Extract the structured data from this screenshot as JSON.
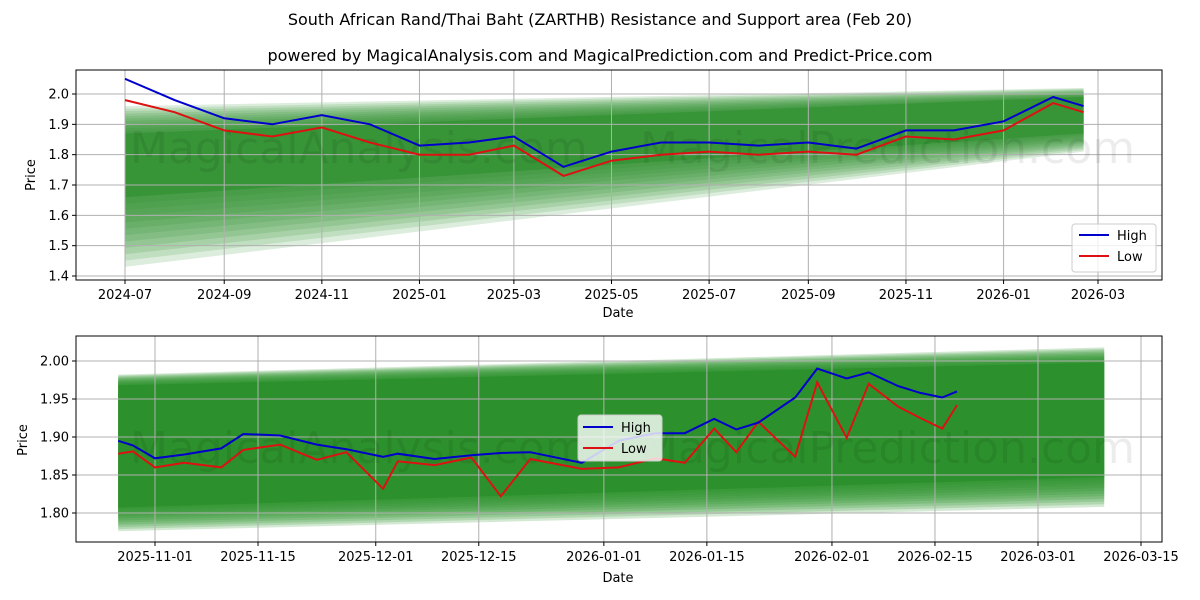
{
  "title": "South African Rand/Thai Baht (ZARTHB) Resistance and Support area (Feb 20)",
  "subtitle": "powered by MagicalAnalysis.com and MagicalPrediction.com and Predict-Price.com",
  "watermark": {
    "left": "MagicalAnalysis.com",
    "right": "MagicalPrediction.com"
  },
  "colors": {
    "high": "#0000cc",
    "low": "#dd1111",
    "band": "#2a8f2a",
    "grid": "#b0b0b0"
  },
  "legend": {
    "high": "High",
    "low": "Low"
  },
  "chart_data": [
    {
      "type": "line",
      "title": "South African Rand/Thai Baht (ZARTHB) Resistance and Support area (Feb 20)",
      "xlabel": "Date",
      "ylabel": "Price",
      "ylim": [
        1.39,
        2.08
      ],
      "yticks": [
        "1.4",
        "1.5",
        "1.6",
        "1.7",
        "1.8",
        "1.9",
        "2.0"
      ],
      "xticks": [
        "2024-07",
        "2024-09",
        "2024-11",
        "2025-01",
        "2025-03",
        "2025-05",
        "2025-07",
        "2025-09",
        "2025-11",
        "2026-01",
        "2026-03"
      ],
      "grid": true,
      "legend_position": "lower right",
      "x": [
        "2024-07",
        "2024-08",
        "2024-09",
        "2024-10",
        "2024-11",
        "2024-12",
        "2025-01",
        "2025-02",
        "2025-03",
        "2025-04",
        "2025-05",
        "2025-06",
        "2025-07",
        "2025-08",
        "2025-09",
        "2025-10",
        "2025-11",
        "2025-12",
        "2026-01",
        "2026-02",
        "2026-02-20"
      ],
      "series": [
        {
          "name": "High",
          "values": [
            2.05,
            1.98,
            1.92,
            1.9,
            1.93,
            1.9,
            1.83,
            1.84,
            1.86,
            1.76,
            1.81,
            1.84,
            1.84,
            1.83,
            1.84,
            1.82,
            1.88,
            1.88,
            1.91,
            1.99,
            1.96
          ]
        },
        {
          "name": "Low",
          "values": [
            1.98,
            1.94,
            1.88,
            1.86,
            1.89,
            1.84,
            1.8,
            1.8,
            1.83,
            1.73,
            1.78,
            1.8,
            1.81,
            1.8,
            1.81,
            1.8,
            1.86,
            1.85,
            1.88,
            1.97,
            1.94
          ]
        }
      ],
      "support_resistance_band": {
        "start": "2024-07",
        "end": "2026-02-20",
        "outer_upper": [
          1.96,
          2.02
        ],
        "core_upper": [
          1.87,
          1.99
        ],
        "core_lower": [
          1.66,
          1.87
        ],
        "outer_lower": [
          1.43,
          1.81
        ]
      }
    },
    {
      "type": "line",
      "xlabel": "Date",
      "ylabel": "Price",
      "ylim": [
        1.763,
        2.033
      ],
      "yticks": [
        "1.80",
        "1.85",
        "1.90",
        "1.95",
        "2.00"
      ],
      "xticks": [
        "2025-11-01",
        "2025-11-15",
        "2025-12-01",
        "2025-12-15",
        "2026-01-01",
        "2026-01-15",
        "2026-02-01",
        "2026-02-15",
        "2026-03-01",
        "2026-03-15"
      ],
      "grid": true,
      "legend_position": "center",
      "x": [
        "2025-10-27",
        "2025-10-29",
        "2025-11-01",
        "2025-11-05",
        "2025-11-10",
        "2025-11-13",
        "2025-11-18",
        "2025-11-23",
        "2025-11-27",
        "2025-12-02",
        "2025-12-04",
        "2025-12-09",
        "2025-12-14",
        "2025-12-18",
        "2025-12-22",
        "2025-12-29",
        "2026-01-03",
        "2026-01-08",
        "2026-01-12",
        "2026-01-16",
        "2026-01-19",
        "2026-01-22",
        "2026-01-27",
        "2026-01-30",
        "2026-02-03",
        "2026-02-06",
        "2026-02-10",
        "2026-02-13",
        "2026-02-16",
        "2026-02-18"
      ],
      "series": [
        {
          "name": "High",
          "values": [
            1.895,
            1.889,
            1.872,
            1.877,
            1.885,
            1.904,
            1.902,
            1.89,
            1.884,
            1.874,
            1.878,
            1.871,
            1.876,
            1.879,
            1.88,
            1.866,
            1.895,
            1.905,
            1.905,
            1.924,
            1.91,
            1.919,
            1.952,
            1.99,
            1.977,
            1.985,
            1.967,
            1.958,
            1.952,
            1.96
          ]
        },
        {
          "name": "Low",
          "values": [
            1.878,
            1.881,
            1.86,
            1.866,
            1.86,
            1.883,
            1.89,
            1.87,
            1.88,
            1.832,
            1.868,
            1.863,
            1.873,
            1.822,
            1.871,
            1.858,
            1.86,
            1.872,
            1.866,
            1.911,
            1.88,
            1.92,
            1.874,
            1.972,
            1.899,
            1.97,
            1.94,
            1.925,
            1.911,
            1.942
          ]
        }
      ],
      "support_resistance_band": {
        "start": "2025-10-27",
        "end": "2026-03-10",
        "outer_upper": [
          1.982,
          2.018
        ],
        "core_upper": [
          1.968,
          1.998
        ],
        "core_lower": [
          1.807,
          1.847
        ],
        "outer_lower": [
          1.776,
          1.808
        ]
      }
    }
  ]
}
